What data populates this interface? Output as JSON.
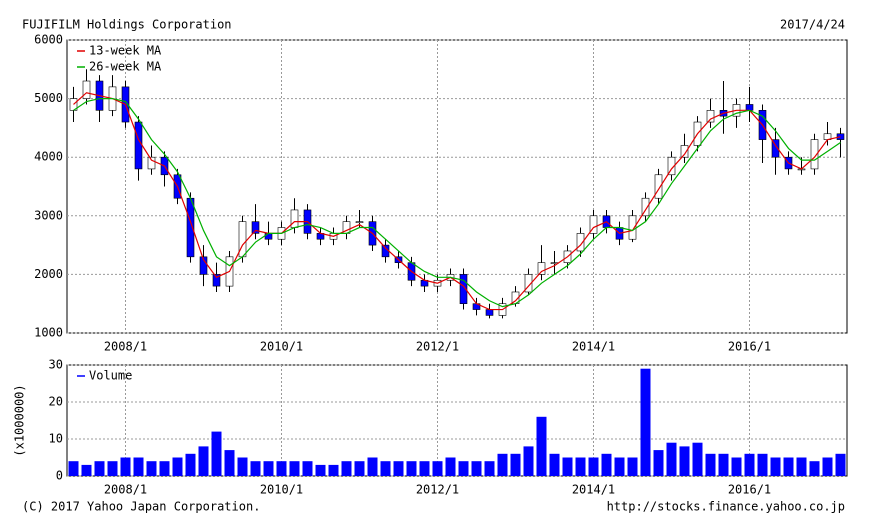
{
  "header": {
    "title": "FUJIFILM Holdings Corporation",
    "date": "2017/4/24"
  },
  "footer": {
    "copyright": "(C) 2017 Yahoo Japan Corporation.",
    "url": "http://stocks.finance.yahoo.co.jp"
  },
  "chart_data": [
    {
      "type": "candlestick",
      "x": [
        "2007/5",
        "2007/7",
        "2007/9",
        "2007/11",
        "2008/1",
        "2008/3",
        "2008/5",
        "2008/7",
        "2008/9",
        "2008/11",
        "2009/1",
        "2009/3",
        "2009/5",
        "2009/7",
        "2009/9",
        "2009/11",
        "2010/1",
        "2010/3",
        "2010/5",
        "2010/7",
        "2010/9",
        "2010/11",
        "2011/1",
        "2011/3",
        "2011/5",
        "2011/7",
        "2011/9",
        "2011/11",
        "2012/1",
        "2012/3",
        "2012/5",
        "2012/7",
        "2012/9",
        "2012/11",
        "2013/1",
        "2013/3",
        "2013/5",
        "2013/7",
        "2013/9",
        "2013/11",
        "2014/1",
        "2014/3",
        "2014/5",
        "2014/7",
        "2014/9",
        "2014/11",
        "2015/1",
        "2015/3",
        "2015/5",
        "2015/7",
        "2015/9",
        "2015/11",
        "2016/1",
        "2016/3",
        "2016/5",
        "2016/7",
        "2016/9",
        "2016/11",
        "2017/1",
        "2017/3"
      ],
      "open": [
        4800,
        5000,
        5300,
        4800,
        5200,
        4600,
        3800,
        4000,
        3700,
        3300,
        2300,
        2000,
        1800,
        2300,
        2900,
        2700,
        2600,
        2800,
        3100,
        2700,
        2600,
        2700,
        2900,
        2900,
        2500,
        2300,
        2200,
        1900,
        1800,
        1900,
        2000,
        1500,
        1400,
        1300,
        1500,
        1700,
        2000,
        2200,
        2200,
        2400,
        2700,
        3000,
        2800,
        2600,
        3000,
        3300,
        3700,
        4000,
        4200,
        4600,
        4800,
        4700,
        4900,
        4800,
        4300,
        4000,
        3800,
        3800,
        4300,
        4400
      ],
      "high": [
        5200,
        5500,
        5400,
        5400,
        5300,
        4700,
        4200,
        4100,
        3800,
        3400,
        2500,
        2200,
        2400,
        3000,
        3200,
        2900,
        2900,
        3300,
        3200,
        2800,
        2800,
        3000,
        3100,
        3000,
        2600,
        2400,
        2300,
        2000,
        2000,
        2100,
        2100,
        1600,
        1500,
        1600,
        1800,
        2100,
        2500,
        2400,
        2500,
        2800,
        3100,
        3100,
        2900,
        3100,
        3400,
        3800,
        4100,
        4400,
        4700,
        5000,
        5300,
        5000,
        5200,
        4900,
        4500,
        4100,
        4000,
        4400,
        4600,
        4500
      ],
      "low": [
        4600,
        4900,
        4600,
        4700,
        4500,
        3600,
        3700,
        3500,
        3200,
        2200,
        1800,
        1700,
        1700,
        2200,
        2600,
        2500,
        2500,
        2700,
        2600,
        2500,
        2500,
        2600,
        2800,
        2400,
        2200,
        2100,
        1800,
        1700,
        1700,
        1800,
        1400,
        1300,
        1250,
        1250,
        1450,
        1650,
        1900,
        2000,
        2100,
        2300,
        2600,
        2700,
        2500,
        2550,
        2900,
        3200,
        3600,
        3900,
        4100,
        4500,
        4400,
        4500,
        4600,
        3900,
        3700,
        3700,
        3700,
        3700,
        4200,
        4000
      ],
      "close": [
        5000,
        5300,
        4800,
        5200,
        4600,
        3800,
        4000,
        3700,
        3300,
        2300,
        2000,
        1800,
        2300,
        2900,
        2700,
        2600,
        2800,
        3100,
        2700,
        2600,
        2700,
        2900,
        2900,
        2500,
        2300,
        2200,
        1900,
        1800,
        1900,
        2000,
        1500,
        1400,
        1300,
        1500,
        1700,
        2000,
        2200,
        2200,
        2400,
        2700,
        3000,
        2800,
        2600,
        3000,
        3300,
        3700,
        4000,
        4200,
        4600,
        4800,
        4700,
        4900,
        4800,
        4300,
        4000,
        3800,
        3800,
        4300,
        4400,
        4300
      ],
      "up_color": "#ffffff",
      "down_color": "#0000ff",
      "series": [
        {
          "name": "13-week MA",
          "color": "#e00000",
          "values": [
            4900,
            5100,
            5050,
            5000,
            4900,
            4300,
            3950,
            3850,
            3500,
            2900,
            2250,
            1950,
            2050,
            2500,
            2750,
            2700,
            2700,
            2900,
            2900,
            2700,
            2650,
            2750,
            2850,
            2700,
            2450,
            2250,
            2050,
            1900,
            1850,
            1950,
            1800,
            1500,
            1400,
            1400,
            1550,
            1800,
            2050,
            2150,
            2300,
            2500,
            2800,
            2900,
            2700,
            2750,
            3100,
            3450,
            3800,
            4050,
            4400,
            4650,
            4750,
            4800,
            4800,
            4550,
            4200,
            3900,
            3800,
            4000,
            4300,
            4350
          ]
        },
        {
          "name": "26-week MA",
          "color": "#00b000",
          "values": [
            4800,
            4950,
            5000,
            5000,
            4950,
            4650,
            4300,
            4050,
            3750,
            3300,
            2750,
            2300,
            2150,
            2300,
            2550,
            2700,
            2700,
            2800,
            2850,
            2800,
            2700,
            2700,
            2800,
            2800,
            2600,
            2400,
            2200,
            2050,
            1950,
            1950,
            1900,
            1700,
            1550,
            1450,
            1500,
            1650,
            1850,
            2000,
            2150,
            2350,
            2600,
            2800,
            2800,
            2750,
            2900,
            3200,
            3550,
            3850,
            4150,
            4450,
            4650,
            4750,
            4800,
            4700,
            4450,
            4150,
            3950,
            3950,
            4100,
            4250
          ]
        }
      ],
      "xlim": [
        "2007/4",
        "2017/4"
      ],
      "xticks": [
        "2008/1",
        "2010/1",
        "2012/1",
        "2014/1",
        "2016/1"
      ],
      "ylim": [
        1000,
        6000
      ],
      "yticks": [
        1000,
        2000,
        3000,
        4000,
        5000,
        6000
      ],
      "grid": true,
      "legend": "top-left"
    },
    {
      "type": "bar",
      "x": [
        "2007/5",
        "2007/7",
        "2007/9",
        "2007/11",
        "2008/1",
        "2008/3",
        "2008/5",
        "2008/7",
        "2008/9",
        "2008/11",
        "2009/1",
        "2009/3",
        "2009/5",
        "2009/7",
        "2009/9",
        "2009/11",
        "2010/1",
        "2010/3",
        "2010/5",
        "2010/7",
        "2010/9",
        "2010/11",
        "2011/1",
        "2011/3",
        "2011/5",
        "2011/7",
        "2011/9",
        "2011/11",
        "2012/1",
        "2012/3",
        "2012/5",
        "2012/7",
        "2012/9",
        "2012/11",
        "2013/1",
        "2013/3",
        "2013/5",
        "2013/7",
        "2013/9",
        "2013/11",
        "2014/1",
        "2014/3",
        "2014/5",
        "2014/7",
        "2014/9",
        "2014/11",
        "2015/1",
        "2015/3",
        "2015/5",
        "2015/7",
        "2015/9",
        "2015/11",
        "2016/1",
        "2016/3",
        "2016/5",
        "2016/7",
        "2016/9",
        "2016/11",
        "2017/1",
        "2017/3"
      ],
      "series": [
        {
          "name": "Volume",
          "color": "#0000ff",
          "values": [
            4,
            3,
            4,
            4,
            5,
            5,
            4,
            4,
            5,
            6,
            8,
            12,
            7,
            5,
            4,
            4,
            4,
            4,
            4,
            3,
            3,
            4,
            4,
            5,
            4,
            4,
            4,
            4,
            4,
            5,
            4,
            4,
            4,
            6,
            6,
            8,
            16,
            6,
            5,
            5,
            5,
            6,
            5,
            5,
            29,
            7,
            9,
            8,
            9,
            6,
            6,
            5,
            6,
            6,
            5,
            5,
            5,
            4,
            5,
            6
          ]
        }
      ],
      "ylabel": "(x1000000)",
      "xlim": [
        "2007/4",
        "2017/4"
      ],
      "xticks": [
        "2008/1",
        "2010/1",
        "2012/1",
        "2014/1",
        "2016/1"
      ],
      "ylim": [
        0,
        30
      ],
      "yticks": [
        0,
        10,
        20,
        30
      ],
      "grid": true,
      "legend": "top-left"
    }
  ]
}
